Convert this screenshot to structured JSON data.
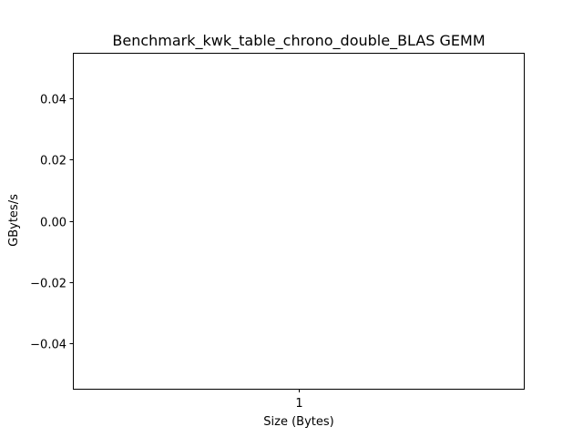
{
  "chart_data": {
    "type": "line",
    "title": "Benchmark_kwk_table_chrono_double_BLAS GEMM",
    "xlabel": "Size (Bytes)",
    "ylabel": "GBytes/s",
    "x_ticks": [
      1
    ],
    "x_tick_labels": [
      "1"
    ],
    "xlim": [
      0.945,
      1.055
    ],
    "y_ticks": [
      -0.04,
      -0.02,
      0.0,
      0.02,
      0.04
    ],
    "y_tick_labels": [
      "−0.04",
      "−0.02",
      "0.00",
      "0.02",
      "0.04"
    ],
    "ylim": [
      -0.055,
      0.055
    ],
    "series": [],
    "grid": false,
    "legend": "none"
  }
}
